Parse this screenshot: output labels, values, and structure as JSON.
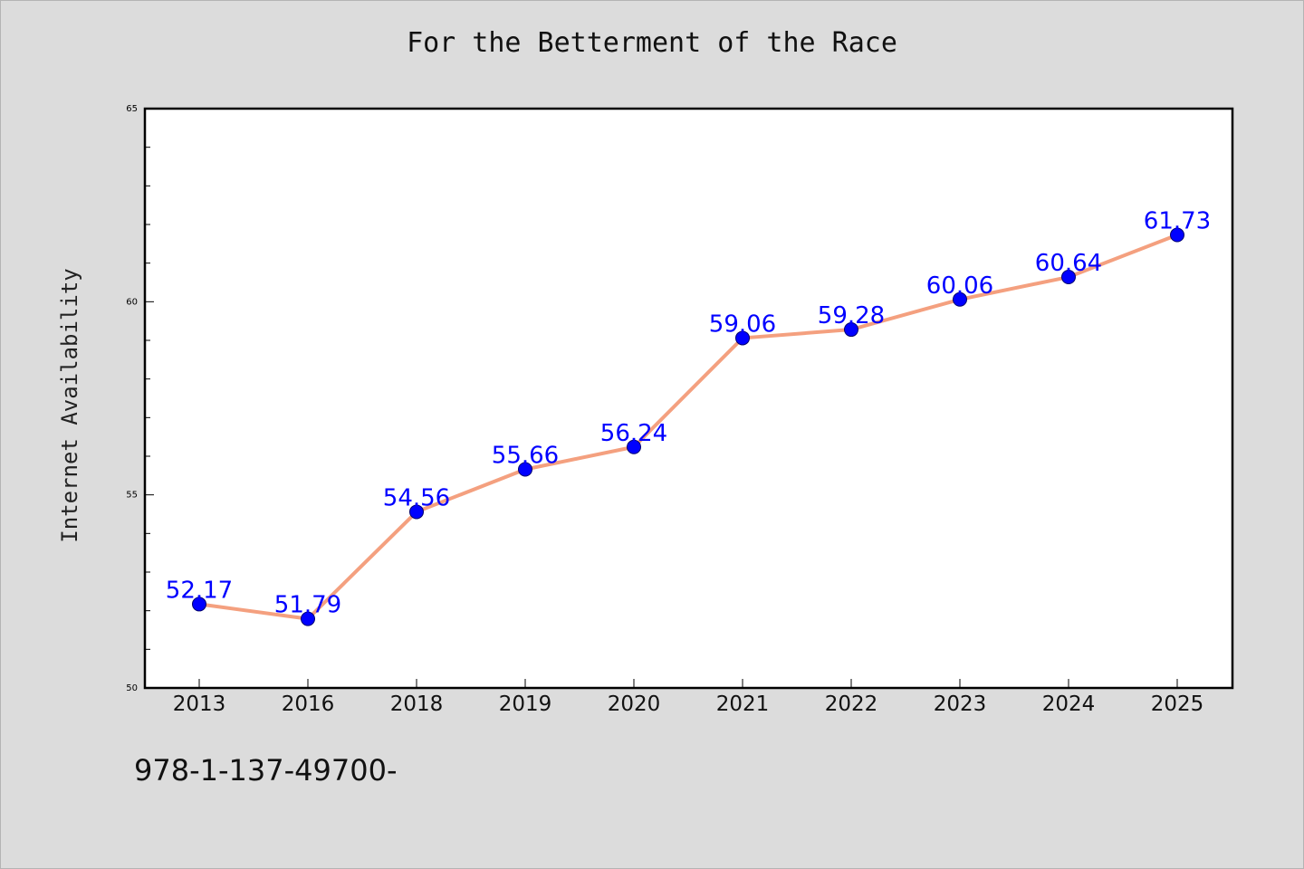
{
  "chart_data": {
    "type": "line",
    "title": "For the Betterment of the Race",
    "xlabel": "",
    "ylabel": "Internet Availability",
    "categories": [
      "2013",
      "2016",
      "2018",
      "2019",
      "2020",
      "2021",
      "2022",
      "2023",
      "2024",
      "2025"
    ],
    "series": [
      {
        "values": [
          52.17,
          51.79,
          54.56,
          55.66,
          56.24,
          59.06,
          59.28,
          60.06,
          60.64,
          61.73
        ],
        "data_labels": [
          "52.17",
          "51.79",
          "54.56",
          "55.66",
          "56.24",
          "59.06",
          "59.28",
          "60.06",
          "60.64",
          "61.73"
        ]
      }
    ],
    "ylim": [
      50,
      65
    ],
    "yticks": [
      "50",
      "55",
      "60",
      "65"
    ],
    "grid": false,
    "legend": "none",
    "line_color": "#f4a07f",
    "marker_color": "#0000ff",
    "label_color": "#0000ff"
  },
  "footer_text": "978-1-137-49700-"
}
